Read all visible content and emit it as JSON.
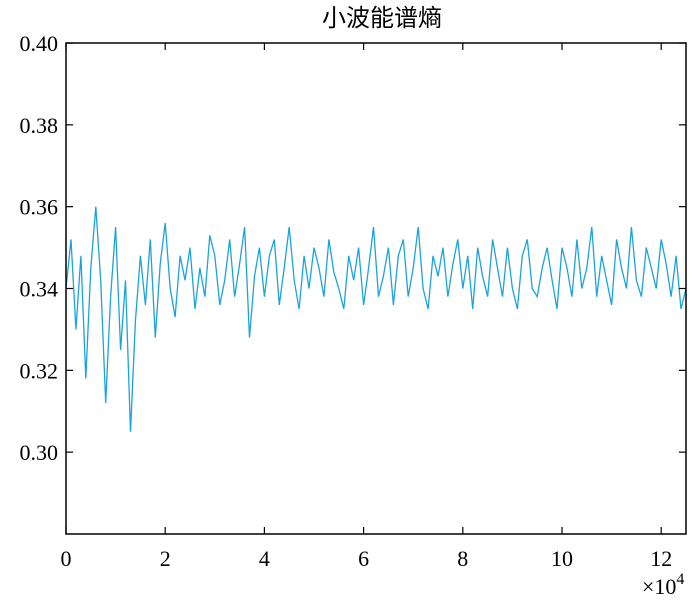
{
  "chart_data": {
    "type": "line",
    "title": "小波能谱熵",
    "xlabel": "",
    "ylabel": "",
    "xlim": [
      0,
      125000
    ],
    "ylim": [
      0.28,
      0.4
    ],
    "x_ticks": [
      0,
      20000,
      40000,
      60000,
      80000,
      100000,
      120000
    ],
    "x_tick_labels": [
      "0",
      "2",
      "4",
      "6",
      "8",
      "10",
      "12"
    ],
    "x_exponent_label": "×10",
    "x_exponent_power": "4",
    "y_ticks": [
      0.3,
      0.32,
      0.34,
      0.36,
      0.38,
      0.4
    ],
    "y_tick_labels": [
      "0.30",
      "0.32",
      "0.34",
      "0.36",
      "0.38",
      "0.40"
    ],
    "grid": false,
    "line_color": "#1aa3dc",
    "sample_step": 1000,
    "series": [
      {
        "values": [
          0.34,
          0.352,
          0.33,
          0.348,
          0.318,
          0.345,
          0.36,
          0.342,
          0.312,
          0.338,
          0.355,
          0.325,
          0.342,
          0.305,
          0.332,
          0.348,
          0.336,
          0.352,
          0.328,
          0.346,
          0.356,
          0.34,
          0.333,
          0.348,
          0.342,
          0.35,
          0.335,
          0.345,
          0.338,
          0.353,
          0.348,
          0.336,
          0.342,
          0.352,
          0.338,
          0.346,
          0.355,
          0.328,
          0.343,
          0.35,
          0.338,
          0.348,
          0.352,
          0.336,
          0.345,
          0.355,
          0.342,
          0.335,
          0.348,
          0.34,
          0.35,
          0.345,
          0.338,
          0.352,
          0.344,
          0.34,
          0.335,
          0.348,
          0.342,
          0.35,
          0.336,
          0.345,
          0.355,
          0.338,
          0.343,
          0.35,
          0.336,
          0.348,
          0.352,
          0.338,
          0.345,
          0.355,
          0.34,
          0.335,
          0.348,
          0.343,
          0.35,
          0.338,
          0.346,
          0.352,
          0.34,
          0.348,
          0.335,
          0.35,
          0.343,
          0.338,
          0.352,
          0.345,
          0.338,
          0.35,
          0.34,
          0.335,
          0.348,
          0.352,
          0.34,
          0.338,
          0.345,
          0.35,
          0.342,
          0.335,
          0.35,
          0.345,
          0.338,
          0.352,
          0.34,
          0.345,
          0.355,
          0.338,
          0.348,
          0.342,
          0.336,
          0.352,
          0.345,
          0.34,
          0.355,
          0.342,
          0.338,
          0.35,
          0.345,
          0.34,
          0.352,
          0.346,
          0.338,
          0.348,
          0.335,
          0.34
        ]
      }
    ]
  }
}
